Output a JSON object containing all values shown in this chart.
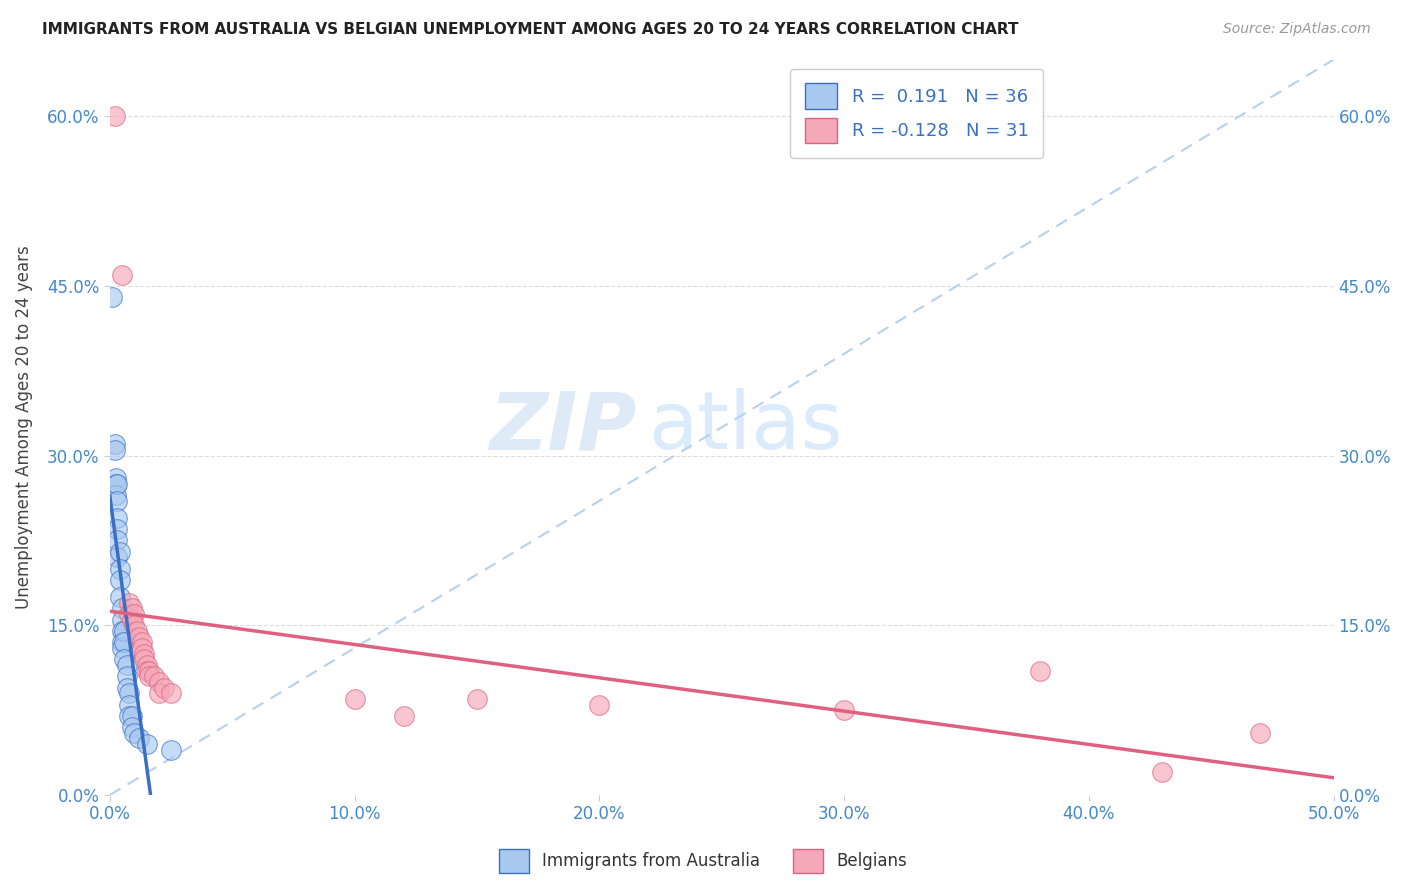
{
  "title": "IMMIGRANTS FROM AUSTRALIA VS BELGIAN UNEMPLOYMENT AMONG AGES 20 TO 24 YEARS CORRELATION CHART",
  "source": "Source: ZipAtlas.com",
  "xlabel_ticks": [
    "0.0%",
    "10.0%",
    "20.0%",
    "30.0%",
    "40.0%",
    "50.0%"
  ],
  "xlabel_tick_vals": [
    0,
    10,
    20,
    30,
    40,
    50
  ],
  "ylabel": "Unemployment Among Ages 20 to 24 years",
  "ylabel_ticks": [
    "0.0%",
    "15.0%",
    "30.0%",
    "45.0%",
    "60.0%"
  ],
  "ylabel_tick_vals": [
    0,
    15,
    30,
    45,
    60
  ],
  "xlim": [
    0,
    50
  ],
  "ylim": [
    0,
    65
  ],
  "watermark_zip": "ZIP",
  "watermark_atlas": "atlas",
  "color_blue": "#A8C8F0",
  "color_pink": "#F4A8B8",
  "trendline_blue_color": "#3A6FC4",
  "trendline_pink_color": "#E06080",
  "trendline_dashed_color": "#B8D0EC",
  "blue_scatter": [
    [
      0.1,
      44.0
    ],
    [
      0.2,
      31.0
    ],
    [
      0.2,
      30.5
    ],
    [
      0.25,
      28.0
    ],
    [
      0.25,
      27.5
    ],
    [
      0.25,
      26.5
    ],
    [
      0.3,
      27.5
    ],
    [
      0.3,
      26.0
    ],
    [
      0.3,
      24.5
    ],
    [
      0.3,
      23.5
    ],
    [
      0.3,
      22.5
    ],
    [
      0.3,
      21.0
    ],
    [
      0.4,
      21.5
    ],
    [
      0.4,
      20.0
    ],
    [
      0.4,
      19.0
    ],
    [
      0.4,
      17.5
    ],
    [
      0.5,
      16.5
    ],
    [
      0.5,
      15.5
    ],
    [
      0.5,
      14.5
    ],
    [
      0.5,
      13.5
    ],
    [
      0.5,
      13.0
    ],
    [
      0.6,
      14.5
    ],
    [
      0.6,
      13.5
    ],
    [
      0.6,
      12.0
    ],
    [
      0.7,
      11.5
    ],
    [
      0.7,
      10.5
    ],
    [
      0.7,
      9.5
    ],
    [
      0.8,
      9.0
    ],
    [
      0.8,
      8.0
    ],
    [
      0.8,
      7.0
    ],
    [
      0.9,
      7.0
    ],
    [
      0.9,
      6.0
    ],
    [
      1.0,
      5.5
    ],
    [
      1.2,
      5.0
    ],
    [
      1.5,
      4.5
    ],
    [
      2.5,
      4.0
    ]
  ],
  "pink_scatter": [
    [
      0.2,
      60.0
    ],
    [
      0.5,
      46.0
    ],
    [
      0.8,
      17.0
    ],
    [
      0.8,
      16.0
    ],
    [
      0.9,
      16.5
    ],
    [
      0.9,
      15.5
    ],
    [
      1.0,
      16.0
    ],
    [
      1.0,
      15.0
    ],
    [
      1.1,
      14.5
    ],
    [
      1.2,
      14.0
    ],
    [
      1.3,
      13.5
    ],
    [
      1.3,
      13.0
    ],
    [
      1.4,
      12.5
    ],
    [
      1.4,
      12.0
    ],
    [
      1.5,
      11.5
    ],
    [
      1.5,
      11.0
    ],
    [
      1.6,
      11.0
    ],
    [
      1.6,
      10.5
    ],
    [
      1.8,
      10.5
    ],
    [
      2.0,
      10.0
    ],
    [
      2.0,
      9.0
    ],
    [
      2.2,
      9.5
    ],
    [
      2.5,
      9.0
    ],
    [
      10.0,
      8.5
    ],
    [
      12.0,
      7.0
    ],
    [
      15.0,
      8.5
    ],
    [
      20.0,
      8.0
    ],
    [
      30.0,
      7.5
    ],
    [
      38.0,
      11.0
    ],
    [
      43.0,
      2.0
    ],
    [
      47.0,
      5.5
    ]
  ]
}
